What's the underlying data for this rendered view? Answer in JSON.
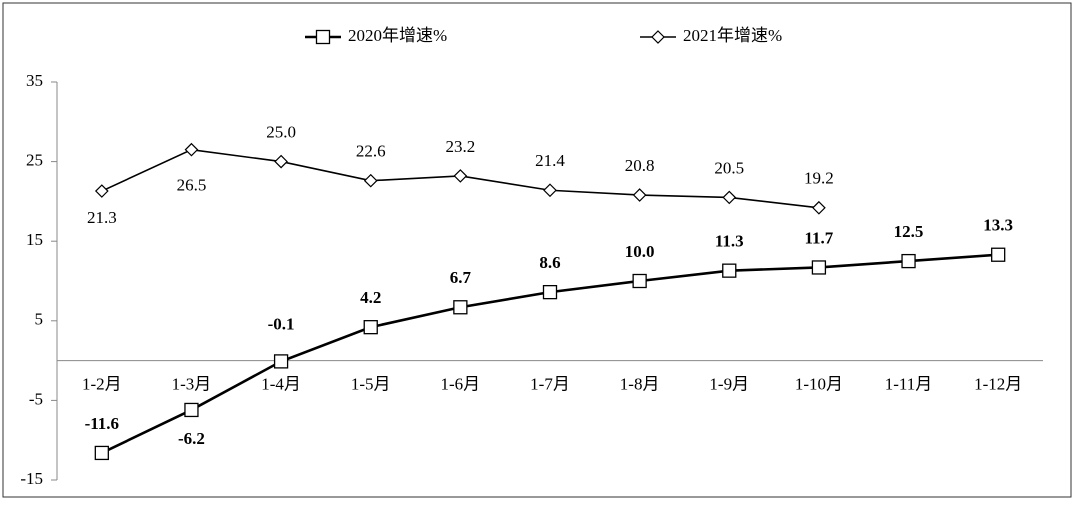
{
  "chart_data": {
    "type": "line",
    "categories": [
      "1-2月",
      "1-3月",
      "1-4月",
      "1-5月",
      "1-6月",
      "1-7月",
      "1-8月",
      "1-9月",
      "1-10月",
      "1-11月",
      "1-12月"
    ],
    "series": [
      {
        "name": "2020年增速%",
        "color": "#000000",
        "marker": "square",
        "values": [
          -11.6,
          -6.2,
          -0.1,
          4.2,
          6.7,
          8.6,
          10.0,
          11.3,
          11.7,
          12.5,
          13.3
        ],
        "value_labels": [
          "-11.6",
          "-6.2",
          "-0.1",
          "4.2",
          "6.7",
          "8.6",
          "10.0",
          "11.3",
          "11.7",
          "12.5",
          "13.3"
        ]
      },
      {
        "name": "2021年增速%",
        "color": "#000000",
        "marker": "diamond",
        "values": [
          21.3,
          26.5,
          25.0,
          22.6,
          23.2,
          21.4,
          20.8,
          20.5,
          19.2,
          null,
          null
        ],
        "value_labels": [
          "21.3",
          "26.5",
          "25.0",
          "22.6",
          "23.2",
          "21.4",
          "20.8",
          "20.5",
          "19.2",
          null,
          null
        ]
      }
    ],
    "ylim": [
      -15,
      35
    ],
    "yticks": [
      -15,
      -5,
      5,
      15,
      25,
      35
    ],
    "grid": false,
    "legend": "top"
  }
}
